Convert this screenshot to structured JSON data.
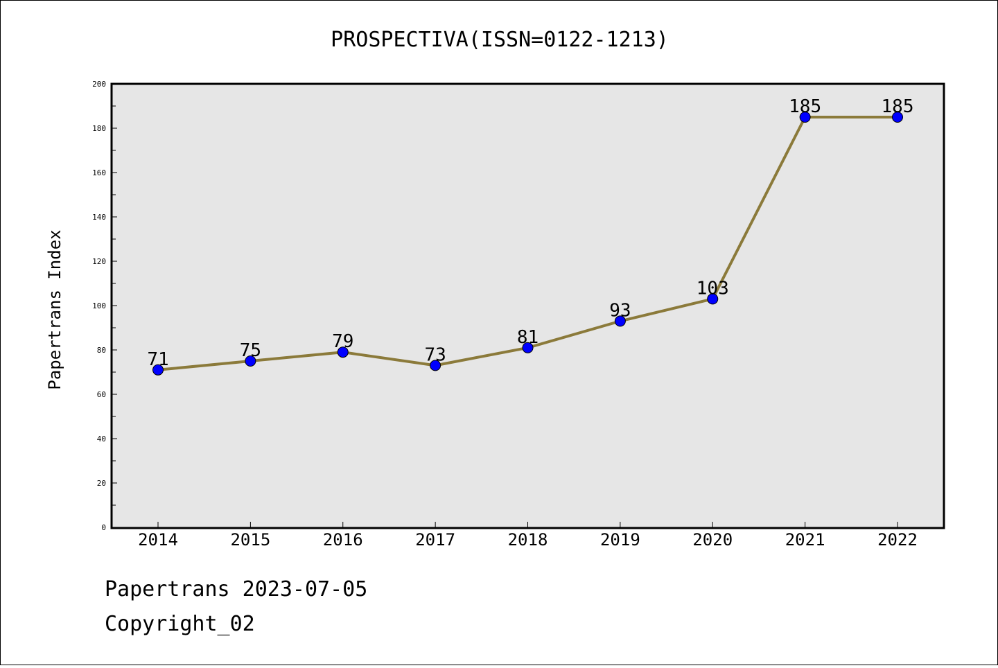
{
  "chart_data": {
    "type": "line",
    "title": "PROSPECTIVA(ISSN=0122-1213)",
    "xlabel": "",
    "ylabel": "Papertrans Index",
    "categories": [
      "2014",
      "2015",
      "2016",
      "2017",
      "2018",
      "2019",
      "2020",
      "2021",
      "2022"
    ],
    "series": [
      {
        "values": [
          71,
          75,
          79,
          73,
          81,
          93,
          103,
          185,
          185
        ],
        "line_color": "#8b7a3a",
        "marker_color": "#0000ff"
      }
    ],
    "ylim": [
      0,
      200
    ],
    "yticks": [
      0,
      20,
      40,
      60,
      80,
      100,
      120,
      140,
      160,
      180,
      200
    ],
    "grid": false,
    "plot_background": "#e6e6e6",
    "data_labels": true
  },
  "footer": {
    "line1": "Papertrans 2023-07-05",
    "line2": "Copyright_02"
  }
}
